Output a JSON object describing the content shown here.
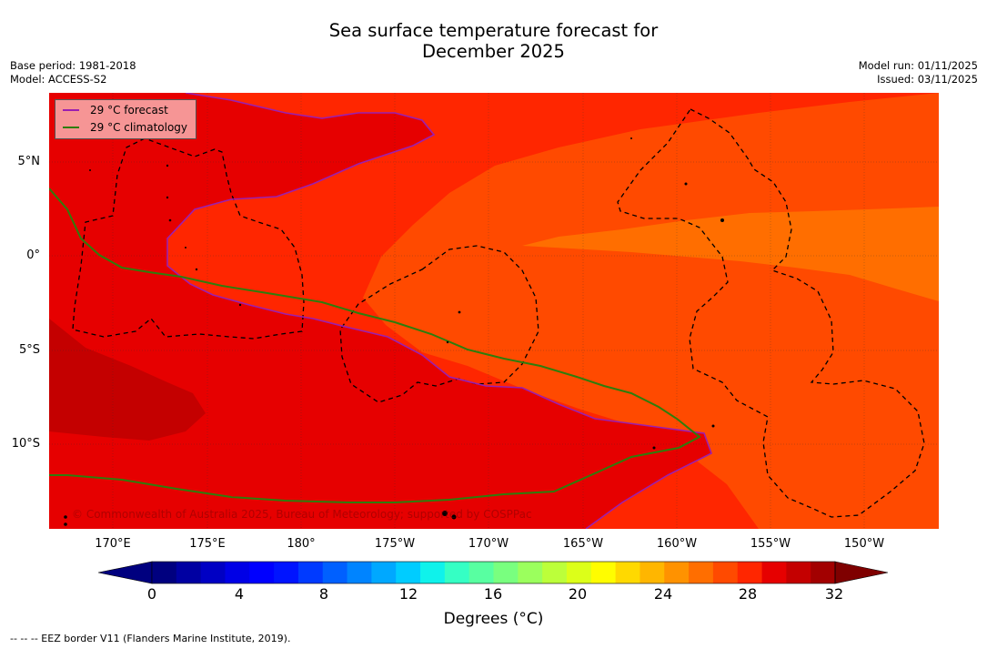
{
  "title": {
    "line1": "Sea surface temperature forecast for",
    "line2": "December 2025"
  },
  "meta_left": {
    "base_period": "Base period: 1981-2018",
    "model": "Model: ACCESS-S2"
  },
  "meta_right": {
    "model_run": "Model run: 01/11/2025",
    "issued": "Issued: 03/11/2025"
  },
  "legend": {
    "forecast_label": "29 °C  forecast",
    "climatology_label": "29 °C  climatology",
    "forecast_color": "#9b1fb0",
    "climatology_color": "#2e7d0c"
  },
  "copyright": "© Commonwealth of Australia 2025, Bureau of Meteorology; supported by COSPPac",
  "axes": {
    "y_labels": [
      "5°N",
      "0°",
      "5°S",
      "10°S"
    ],
    "x_labels": [
      "170°E",
      "175°E",
      "180°",
      "175°W",
      "170°W",
      "165°W",
      "160°W",
      "155°W",
      "150°W"
    ]
  },
  "colorbar": {
    "tick_labels": [
      "0",
      "4",
      "8",
      "12",
      "16",
      "20",
      "24",
      "28",
      "32"
    ],
    "label": "Degrees (°C)",
    "colors": [
      "#00007f",
      "#0000a2",
      "#0000c4",
      "#0000e6",
      "#0000ff",
      "#0014ff",
      "#003aff",
      "#0060ff",
      "#0084ff",
      "#00a8ff",
      "#00ccff",
      "#0ff2eb",
      "#35ffc4",
      "#58ffa1",
      "#79ff7f",
      "#9bff5d",
      "#bcff3a",
      "#dcff19",
      "#fffd00",
      "#ffd900",
      "#ffb600",
      "#ff9200",
      "#ff6e00",
      "#ff4a00",
      "#ff2600",
      "#e60000",
      "#c40000",
      "#a20000"
    ]
  },
  "footnote": "--  --  -- EEZ border V11 (Flanders Marine Institute, 2019)."
}
